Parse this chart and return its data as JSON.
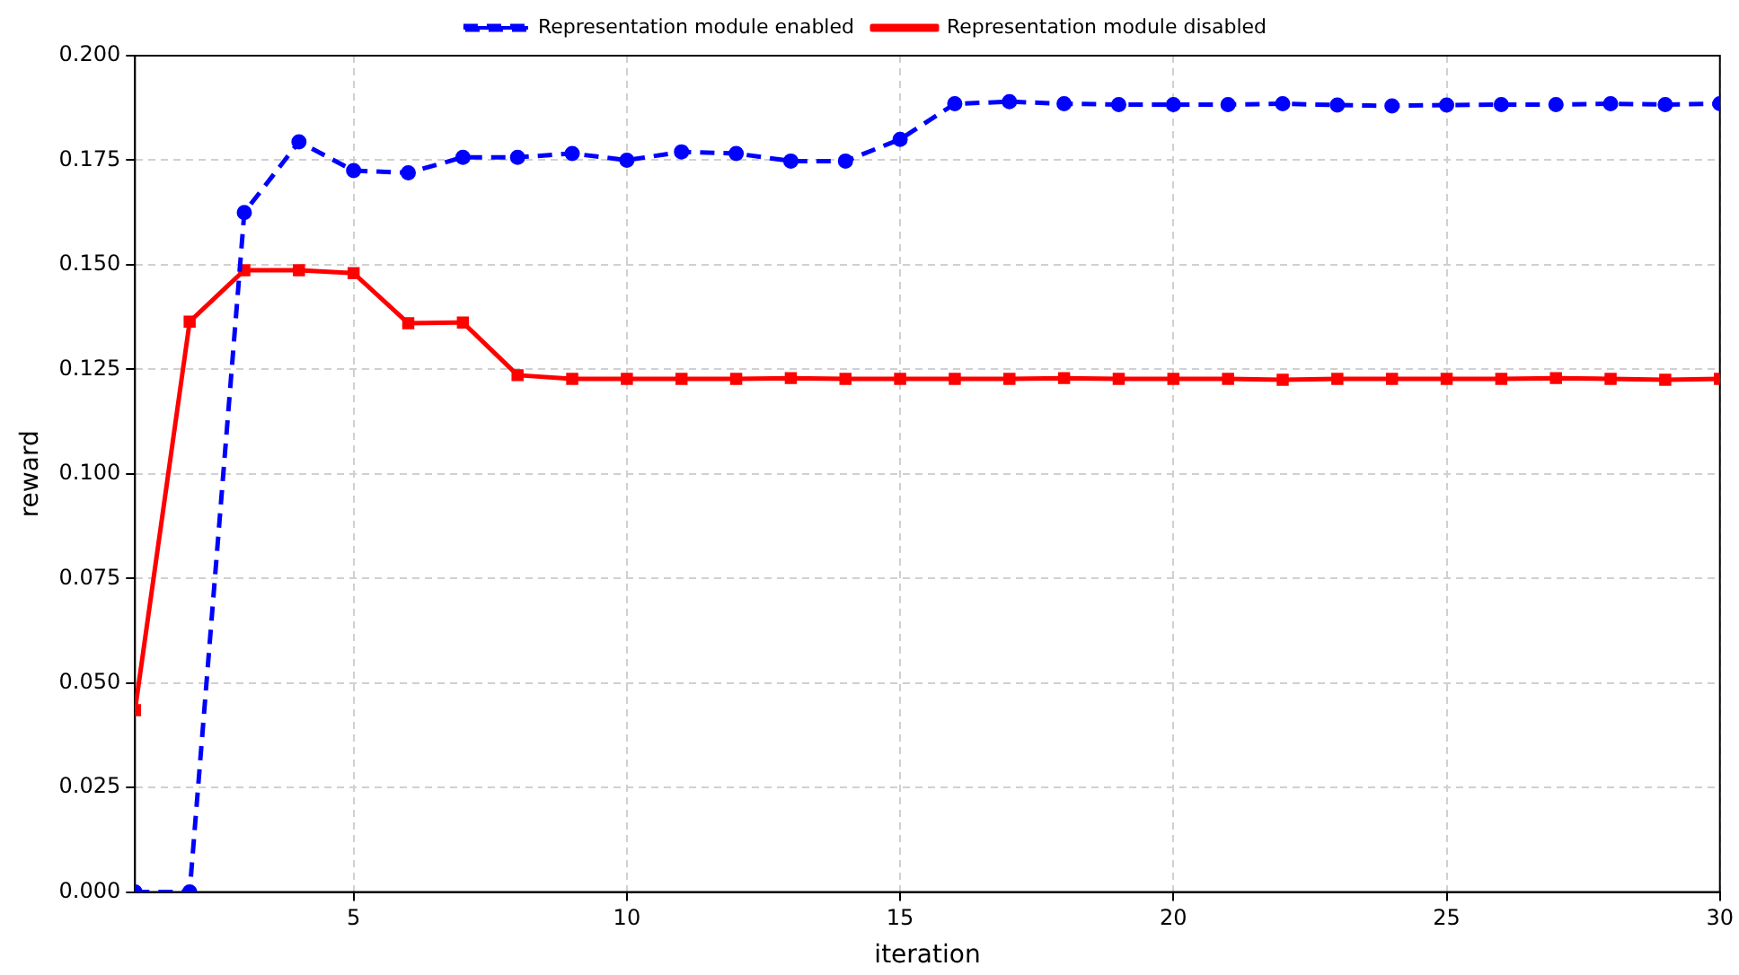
{
  "chart_data": {
    "type": "line",
    "xlabel": "iteration",
    "ylabel": "reward",
    "x": [
      1,
      2,
      3,
      4,
      5,
      6,
      7,
      8,
      9,
      10,
      11,
      12,
      13,
      14,
      15,
      16,
      17,
      18,
      19,
      20,
      21,
      22,
      23,
      24,
      25,
      26,
      27,
      28,
      29,
      30
    ],
    "xlim": [
      1,
      30
    ],
    "xticks": [
      5,
      10,
      15,
      20,
      25,
      30
    ],
    "ylim": [
      0,
      0.2
    ],
    "yticks": [
      {
        "value": 0,
        "label": "0.000"
      },
      {
        "value": 0.025,
        "label": "0.025"
      },
      {
        "value": 0.05,
        "label": "0.050"
      },
      {
        "value": 0.075,
        "label": "0.075"
      },
      {
        "value": 0.1,
        "label": "0.100"
      },
      {
        "value": 0.125,
        "label": "0.125"
      },
      {
        "value": 0.15,
        "label": "0.150"
      },
      {
        "value": 0.175,
        "label": "0.175"
      },
      {
        "value": 0.2,
        "label": "0.200"
      }
    ],
    "grid": true,
    "legend": "top",
    "series": [
      {
        "name": "Representation module enabled",
        "color": "#0000ff",
        "marker": "circle",
        "line_style": "dashed",
        "values": [
          0,
          0,
          0.1625,
          0.1794,
          0.1725,
          0.172,
          0.1757,
          0.1757,
          0.1766,
          0.175,
          0.177,
          0.1766,
          0.1748,
          0.1748,
          0.18,
          0.1885,
          0.189,
          0.1885,
          0.1883,
          0.1883,
          0.1883,
          0.1885,
          0.1882,
          0.188,
          0.1882,
          0.1883,
          0.1883,
          0.1885,
          0.1883,
          0.1885
        ]
      },
      {
        "name": "Representation module disabled",
        "color": "#ff0000",
        "marker": "square",
        "line_style": "solid",
        "values": [
          0.0435,
          0.1364,
          0.1487,
          0.1487,
          0.148,
          0.136,
          0.1362,
          0.1236,
          0.1227,
          0.1227,
          0.1227,
          0.1227,
          0.1229,
          0.1227,
          0.1227,
          0.1227,
          0.1227,
          0.1229,
          0.1227,
          0.1227,
          0.1227,
          0.1225,
          0.1227,
          0.1227,
          0.1227,
          0.1227,
          0.1229,
          0.1227,
          0.1225,
          0.1227
        ]
      }
    ]
  }
}
